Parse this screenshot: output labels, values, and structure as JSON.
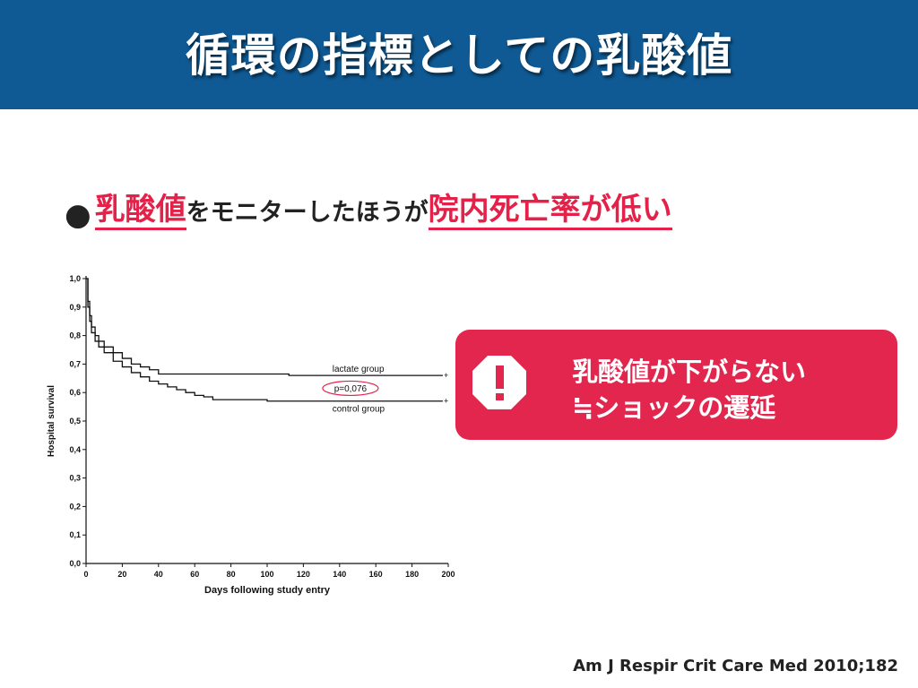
{
  "slide": {
    "title": "循環の指標としての乳酸値",
    "bullet": {
      "dot": "●",
      "part1": "乳酸値",
      "part2": "をモニターしたほうが",
      "part3": "院内死亡率が低い"
    },
    "callout": {
      "line1": "乳酸値が下がらない",
      "line2": "≒ショックの遷延",
      "icon": "exclamation-octagon-icon"
    },
    "citation": "Am J Respir Crit Care Med 2010;182"
  },
  "colors": {
    "header_bg": "#0f5a94",
    "accent_red": "#e5214a",
    "callout_bg": "#e3264e"
  },
  "chart_data": {
    "type": "line",
    "xlabel": "Days following study entry",
    "ylabel": "Hospital survival",
    "xlim": [
      0,
      200
    ],
    "ylim": [
      0,
      1
    ],
    "x_ticks": [
      "0",
      "20",
      "40",
      "60",
      "80",
      "100",
      "120",
      "140",
      "160",
      "180",
      "200"
    ],
    "y_ticks": [
      "0,0",
      "0,1",
      "0,2",
      "0,3",
      "0,4",
      "0,5",
      "0,6",
      "0,7",
      "0,8",
      "0,9",
      "1,0"
    ],
    "annotation": "p=0,076",
    "series": [
      {
        "name": "lactate group",
        "x": [
          0,
          1,
          2,
          3,
          5,
          7,
          10,
          15,
          20,
          25,
          30,
          35,
          40,
          45,
          60,
          80,
          110,
          112,
          130,
          160,
          197
        ],
        "y": [
          1.0,
          0.92,
          0.87,
          0.83,
          0.8,
          0.78,
          0.76,
          0.74,
          0.72,
          0.7,
          0.69,
          0.68,
          0.665,
          0.665,
          0.665,
          0.665,
          0.665,
          0.66,
          0.66,
          0.66,
          0.66
        ]
      },
      {
        "name": "control group",
        "x": [
          0,
          1,
          2,
          3,
          5,
          7,
          10,
          15,
          20,
          25,
          30,
          35,
          40,
          45,
          50,
          55,
          60,
          65,
          70,
          90,
          100,
          197
        ],
        "y": [
          1.0,
          0.9,
          0.85,
          0.81,
          0.78,
          0.76,
          0.74,
          0.71,
          0.69,
          0.67,
          0.655,
          0.64,
          0.63,
          0.62,
          0.61,
          0.6,
          0.59,
          0.585,
          0.575,
          0.575,
          0.57,
          0.57
        ]
      }
    ]
  }
}
